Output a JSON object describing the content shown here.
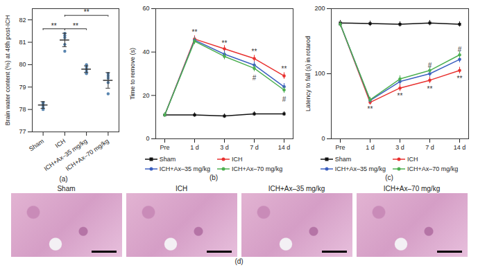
{
  "chart_data": [
    {
      "type": "scatter",
      "panel_label": "(a)",
      "y_label": "Brain water content (%) at 48h post-ICH",
      "categories": [
        "Sham",
        "ICH",
        "ICH+Ax–35 mg/kg",
        "ICH+Ax–70 mg/kg"
      ],
      "values": [
        78.2,
        81.1,
        79.8,
        79.3
      ],
      "errors": [
        0.15,
        0.3,
        0.15,
        0.35
      ],
      "points": [
        [
          78.1,
          78.3,
          78.2,
          78.0,
          78.3
        ],
        [
          81.3,
          80.9,
          81.2,
          80.6,
          81.4
        ],
        [
          79.9,
          80.0,
          79.7,
          79.8,
          79.6
        ],
        [
          79.5,
          79.6,
          79.2,
          78.7,
          79.4
        ]
      ],
      "color": "#5a86b0",
      "ylim": [
        77,
        82.5
      ],
      "yticks": [
        77,
        78,
        79,
        80,
        81,
        82
      ],
      "grid": false,
      "significance": [
        {
          "from": "Sham",
          "to": "ICH",
          "y": 81.6,
          "text": "**"
        },
        {
          "from": "ICH",
          "to": "ICH+Ax–35 mg/kg",
          "y": 81.6,
          "text": "**"
        },
        {
          "from": "ICH",
          "to": "ICH+Ax–70 mg/kg",
          "y": 82.2,
          "text": "**"
        }
      ]
    },
    {
      "type": "line",
      "panel_label": "(b)",
      "y_label": "Time to remove (s)",
      "x": [
        "Pre",
        "1 d",
        "3 d",
        "7 d",
        "14 d"
      ],
      "series": [
        {
          "name": "Sham",
          "color": "#111111",
          "marker": "square",
          "values": [
            11,
            11,
            10.5,
            11.5,
            11.5
          ],
          "errors": [
            1,
            1,
            1,
            1,
            1
          ]
        },
        {
          "name": "ICH",
          "color": "#e8312f",
          "marker": "circle",
          "values": [
            11,
            46,
            41.5,
            37,
            29
          ],
          "errors": [
            1,
            1.5,
            1.5,
            1.5,
            1.5
          ]
        },
        {
          "name": "ICH+Ax–35 mg/kg",
          "color": "#3b5fc0",
          "marker": "circle",
          "values": [
            11,
            45.5,
            39,
            34,
            24
          ],
          "errors": [
            1,
            1.5,
            1.5,
            1.5,
            1.5
          ]
        },
        {
          "name": "ICH+Ax–70 mg/kg",
          "color": "#4caf50",
          "marker": "circle",
          "values": [
            11,
            45,
            38,
            32.5,
            22.5
          ],
          "errors": [
            1,
            1.5,
            1.5,
            1.5,
            1.5
          ]
        }
      ],
      "ylim": [
        0,
        60
      ],
      "yticks": [
        0,
        20,
        40,
        60
      ],
      "grid": false,
      "legend": "bottom",
      "annotations": [
        {
          "text": "**",
          "x": "1 d",
          "y": 49
        },
        {
          "text": "**",
          "x": "3 d",
          "y": 44
        },
        {
          "text": "**",
          "x": "7 d",
          "y": 40
        },
        {
          "text": "**",
          "x": "14 d",
          "y": 32
        },
        {
          "text": "#",
          "x": "7 d",
          "y": 28
        },
        {
          "text": "#",
          "x": "14 d",
          "y": 18
        }
      ]
    },
    {
      "type": "line",
      "panel_label": "(c)",
      "y_label": "Latency to fall (s) in rotarod",
      "x": [
        "Pre",
        "1 d",
        "3 d",
        "7 d",
        "14 d"
      ],
      "series": [
        {
          "name": "Sham",
          "color": "#111111",
          "marker": "square",
          "values": [
            178,
            177,
            176,
            178,
            176
          ],
          "errors": [
            4,
            4,
            4,
            4,
            4
          ]
        },
        {
          "name": "ICH",
          "color": "#e8312f",
          "marker": "circle",
          "values": [
            176,
            56,
            78,
            90,
            105
          ],
          "errors": [
            4,
            4,
            5,
            5,
            5
          ]
        },
        {
          "name": "ICH+Ax–35 mg/kg",
          "color": "#3b5fc0",
          "marker": "circle",
          "values": [
            176,
            59,
            88,
            100,
            122
          ],
          "errors": [
            4,
            4,
            5,
            5,
            5
          ]
        },
        {
          "name": "ICH+Ax–70 mg/kg",
          "color": "#4caf50",
          "marker": "circle",
          "values": [
            176,
            60,
            92,
            105,
            129
          ],
          "errors": [
            4,
            4,
            5,
            5,
            5
          ]
        }
      ],
      "ylim": [
        0,
        200
      ],
      "yticks": [
        0,
        100,
        200
      ],
      "grid": false,
      "legend": "bottom",
      "annotations": [
        {
          "text": "**",
          "x": "1 d",
          "y": 45
        },
        {
          "text": "**",
          "x": "3 d",
          "y": 66
        },
        {
          "text": "**",
          "x": "7 d",
          "y": 76
        },
        {
          "text": "**",
          "x": "14 d",
          "y": 92
        },
        {
          "text": "#",
          "x": "7 d",
          "y": 112
        },
        {
          "text": "#",
          "x": "14 d",
          "y": 137
        }
      ]
    }
  ],
  "panel_d": {
    "panel_label": "(d)",
    "titles": [
      "Sham",
      "ICH",
      "ICH+Ax–35 mg/kg",
      "ICH+Ax–70 mg/kg"
    ]
  }
}
